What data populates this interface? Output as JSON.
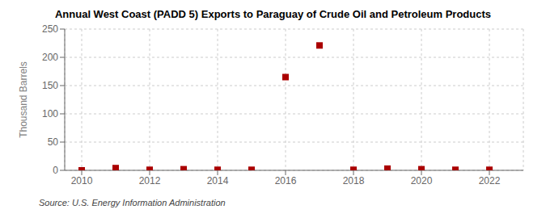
{
  "chart_data": {
    "type": "scatter",
    "title": "Annual West Coast (PADD 5) Exports to Paraguay of Crude Oil and Petroleum Products",
    "ylabel": "Thousand Barrels",
    "source": "Source: U.S. Energy Information Administration",
    "x": [
      2010,
      2011,
      2012,
      2013,
      2014,
      2015,
      2016,
      2017,
      2018,
      2019,
      2020,
      2021,
      2022
    ],
    "values": [
      0,
      4,
      1,
      2,
      1,
      1,
      165,
      221,
      1,
      3,
      2,
      1,
      1
    ],
    "color": "#aa0000",
    "marker": "square",
    "xlim": [
      2009.5,
      2023.0
    ],
    "ylim": [
      0,
      250
    ],
    "xticks": [
      2010,
      2012,
      2014,
      2016,
      2018,
      2020,
      2022
    ],
    "yticks": [
      0,
      50,
      100,
      150,
      200,
      250
    ],
    "grid": true
  }
}
